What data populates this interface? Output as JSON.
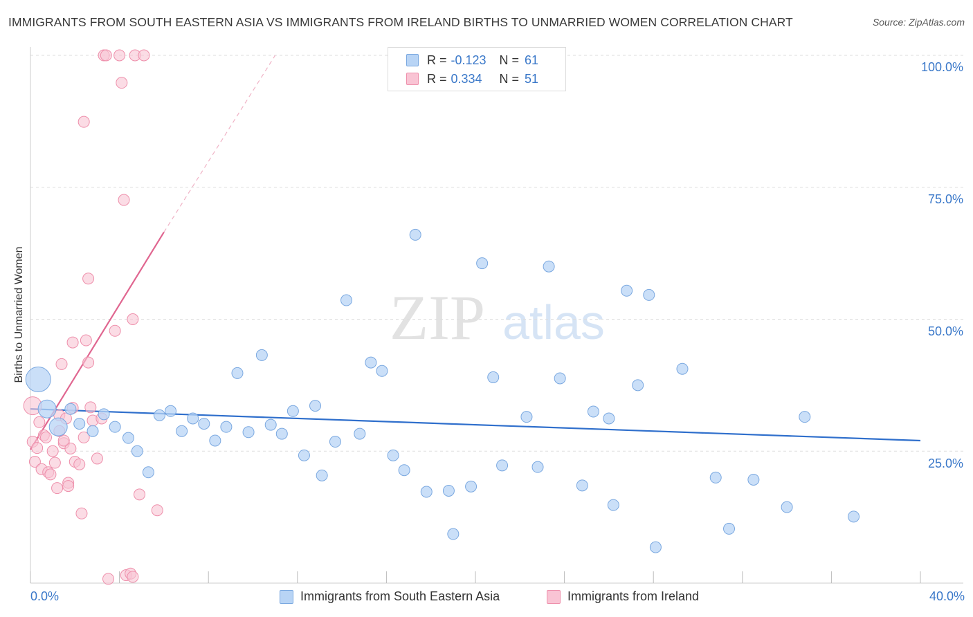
{
  "header": {
    "title": "IMMIGRANTS FROM SOUTH EASTERN ASIA VS IMMIGRANTS FROM IRELAND BIRTHS TO UNMARRIED WOMEN CORRELATION CHART",
    "source": "Source: ZipAtlas.com"
  },
  "watermark": {
    "zip": "ZIP",
    "atlas": "atlas"
  },
  "legend": {
    "rows": [
      {
        "r_label": "R =",
        "r_value": "-0.123",
        "n_label": "N =",
        "n_value": "61"
      },
      {
        "r_label": "R =",
        "r_value": "0.334",
        "n_label": "N =",
        "n_value": "51"
      }
    ],
    "bottom": [
      "Immigrants from South Eastern Asia",
      "Immigrants from Ireland"
    ]
  },
  "axis_labels": {
    "x_min": "0.0%",
    "x_max": "40.0%",
    "y_ticks": [
      "100.0%",
      "75.0%",
      "50.0%",
      "25.0%"
    ]
  },
  "colors": {
    "blue_fill": "#b8d4f5",
    "blue_stroke": "#7aa8e0",
    "blue_line": "#2f6fcc",
    "pink_fill": "#f9c4d4",
    "pink_stroke": "#ee8fab",
    "pink_line": "#e06690",
    "text_blue": "#3a78c9"
  },
  "chart_data": {
    "type": "scatter",
    "title": "IMMIGRANTS FROM SOUTH EASTERN ASIA VS IMMIGRANTS FROM IRELAND BIRTHS TO UNMARRIED WOMEN CORRELATION CHART",
    "xlabel": "",
    "ylabel": "Births to Unmarried Women",
    "xlim": [
      0,
      40
    ],
    "ylim": [
      0,
      100
    ],
    "x_ticks": [
      0,
      4,
      8,
      12,
      16,
      20,
      24,
      28,
      32,
      36,
      40
    ],
    "y_ticks": [
      25,
      50,
      75,
      100
    ],
    "series": [
      {
        "name": "Immigrants from South Eastern Asia",
        "r": -0.123,
        "n": 61,
        "trend": {
          "x": [
            0,
            40
          ],
          "y": [
            33.0,
            27.0
          ]
        },
        "points": [
          [
            0.35,
            38.6,
            3
          ],
          [
            0.75,
            33.0,
            2
          ],
          [
            1.25,
            29.6,
            2
          ],
          [
            1.8,
            33.0,
            1
          ],
          [
            2.2,
            30.2,
            1
          ],
          [
            2.8,
            28.8,
            1
          ],
          [
            3.3,
            32.0,
            1
          ],
          [
            3.8,
            29.6,
            1
          ],
          [
            4.4,
            27.5,
            1
          ],
          [
            4.8,
            25.0,
            1
          ],
          [
            5.3,
            21.0,
            1
          ],
          [
            5.8,
            31.8,
            1
          ],
          [
            6.3,
            32.6,
            1
          ],
          [
            6.8,
            28.8,
            1
          ],
          [
            7.3,
            31.2,
            1
          ],
          [
            7.8,
            30.2,
            1
          ],
          [
            8.3,
            27.0,
            1
          ],
          [
            8.8,
            29.6,
            1
          ],
          [
            9.3,
            39.8,
            1
          ],
          [
            9.8,
            28.6,
            1
          ],
          [
            10.4,
            43.2,
            1
          ],
          [
            10.8,
            30.0,
            1
          ],
          [
            11.3,
            28.3,
            1
          ],
          [
            11.8,
            32.6,
            1
          ],
          [
            12.3,
            24.2,
            1
          ],
          [
            12.8,
            33.6,
            1
          ],
          [
            13.1,
            20.4,
            1
          ],
          [
            13.7,
            26.8,
            1
          ],
          [
            14.2,
            53.6,
            1
          ],
          [
            14.8,
            28.3,
            1
          ],
          [
            15.3,
            41.8,
            1
          ],
          [
            15.8,
            40.2,
            1
          ],
          [
            16.3,
            24.2,
            1
          ],
          [
            16.8,
            21.4,
            1
          ],
          [
            17.3,
            66.0,
            1
          ],
          [
            17.8,
            17.3,
            1
          ],
          [
            18.8,
            17.5,
            1
          ],
          [
            19.0,
            9.3,
            1
          ],
          [
            19.8,
            18.3,
            1
          ],
          [
            20.3,
            60.6,
            1
          ],
          [
            20.8,
            39.0,
            1
          ],
          [
            21.2,
            22.3,
            1
          ],
          [
            22.3,
            31.5,
            1
          ],
          [
            22.8,
            22.0,
            1
          ],
          [
            23.3,
            60.0,
            1
          ],
          [
            23.8,
            38.8,
            1
          ],
          [
            24.8,
            18.5,
            1
          ],
          [
            25.3,
            32.5,
            1
          ],
          [
            26.0,
            31.2,
            1
          ],
          [
            26.2,
            14.8,
            1
          ],
          [
            26.8,
            55.4,
            1
          ],
          [
            27.3,
            37.5,
            1
          ],
          [
            27.8,
            54.6,
            1
          ],
          [
            28.1,
            6.8,
            1
          ],
          [
            29.3,
            40.6,
            1
          ],
          [
            30.8,
            20.0,
            1
          ],
          [
            31.4,
            10.3,
            1
          ],
          [
            32.5,
            19.6,
            1
          ],
          [
            34.0,
            14.4,
            1
          ],
          [
            34.8,
            31.5,
            1
          ],
          [
            37.0,
            12.6,
            1
          ]
        ]
      },
      {
        "name": "Immigrants from Ireland",
        "r": 0.334,
        "n": 51,
        "trend": {
          "x": [
            0,
            6
          ],
          "y": [
            25.3,
            66.5
          ]
        },
        "trend_extension": {
          "x": [
            6,
            11
          ],
          "y": [
            66.5,
            100.0
          ]
        },
        "points": [
          [
            0.1,
            33.6,
            2
          ],
          [
            0.1,
            26.8,
            1
          ],
          [
            0.2,
            23.0,
            1
          ],
          [
            0.3,
            25.6,
            1
          ],
          [
            0.4,
            30.5,
            1
          ],
          [
            0.5,
            21.6,
            1
          ],
          [
            0.6,
            28.0,
            1
          ],
          [
            0.7,
            27.6,
            1
          ],
          [
            0.8,
            21.0,
            1
          ],
          [
            0.9,
            20.6,
            1
          ],
          [
            1.0,
            25.0,
            1
          ],
          [
            1.1,
            22.8,
            1
          ],
          [
            1.2,
            18.0,
            1
          ],
          [
            1.3,
            31.8,
            1
          ],
          [
            1.4,
            41.5,
            1
          ],
          [
            1.5,
            26.5,
            1
          ],
          [
            1.6,
            31.2,
            1
          ],
          [
            1.7,
            19.0,
            1
          ],
          [
            1.8,
            25.5,
            1
          ],
          [
            1.9,
            33.2,
            1
          ],
          [
            1.5,
            27.0,
            1
          ],
          [
            1.3,
            28.8,
            1
          ],
          [
            2.0,
            23.0,
            1
          ],
          [
            2.2,
            22.5,
            1
          ],
          [
            2.4,
            27.6,
            1
          ],
          [
            2.5,
            46.0,
            1
          ],
          [
            2.6,
            57.7,
            1
          ],
          [
            2.7,
            33.3,
            1
          ],
          [
            2.8,
            30.8,
            1
          ],
          [
            1.7,
            18.4,
            1
          ],
          [
            1.9,
            45.6,
            1
          ],
          [
            2.3,
            13.2,
            1
          ],
          [
            2.4,
            87.4,
            1
          ],
          [
            2.6,
            41.8,
            1
          ],
          [
            3.0,
            23.6,
            1
          ],
          [
            3.2,
            31.2,
            1
          ],
          [
            3.3,
            100.0,
            1
          ],
          [
            3.4,
            100.0,
            1
          ],
          [
            3.5,
            0.8,
            1
          ],
          [
            3.8,
            47.8,
            1
          ],
          [
            4.0,
            100.0,
            1
          ],
          [
            4.1,
            94.8,
            1
          ],
          [
            4.2,
            72.6,
            1
          ],
          [
            4.3,
            1.5,
            1
          ],
          [
            4.5,
            1.8,
            1
          ],
          [
            4.6,
            50.0,
            1
          ],
          [
            4.7,
            100.0,
            1
          ],
          [
            4.9,
            16.8,
            1
          ],
          [
            4.6,
            1.2,
            1
          ],
          [
            5.1,
            100.0,
            1
          ],
          [
            5.7,
            13.8,
            1
          ]
        ]
      }
    ],
    "grid": true,
    "legend": "top-center"
  }
}
